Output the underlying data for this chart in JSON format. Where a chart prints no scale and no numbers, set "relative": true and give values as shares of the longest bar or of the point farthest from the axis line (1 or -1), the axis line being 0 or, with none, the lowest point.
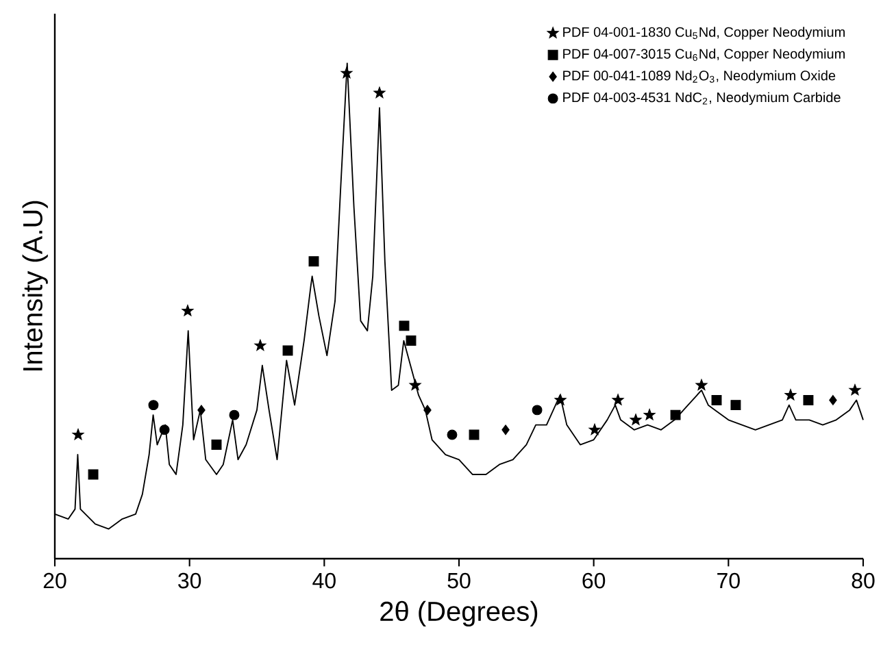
{
  "chart_data": {
    "type": "line",
    "relative": true,
    "xlabel": "2θ (Degrees)",
    "ylabel": "Intensity (A.U)",
    "xlim": [
      20,
      80
    ],
    "xticks": [
      20,
      30,
      40,
      50,
      60,
      70,
      80
    ],
    "grid": false,
    "legend": "top right",
    "tick_labels": "x",
    "series": [
      {
        "color": "#000000",
        "marker": "none",
        "x": [
          20,
          21,
          21.5,
          21.7,
          21.9,
          23,
          24,
          25,
          26,
          26.5,
          27,
          27.3,
          27.6,
          28.2,
          28.5,
          29,
          29.5,
          29.9,
          30.3,
          30.8,
          31.2,
          32,
          32.5,
          33.2,
          33.6,
          34.2,
          35,
          35.4,
          35.9,
          36.5,
          37.2,
          37.8,
          38.5,
          39,
          39.1,
          39.6,
          40.2,
          40.8,
          41.2,
          41.7,
          42.2,
          42.7,
          43.2,
          43.6,
          44.1,
          44.5,
          45,
          45.5,
          45.9,
          46.4,
          47,
          47.5,
          48,
          49,
          50,
          51,
          52,
          53,
          54,
          55,
          55.7,
          56.5,
          57.5,
          58,
          59,
          60,
          61,
          61.6,
          62,
          63,
          64,
          65,
          66,
          67,
          68,
          68.5,
          69,
          70,
          71,
          72,
          73,
          74,
          74.5,
          75,
          76,
          77,
          78,
          79,
          79.5,
          80
        ],
        "values": [
          0.09,
          0.08,
          0.1,
          0.21,
          0.1,
          0.07,
          0.06,
          0.08,
          0.09,
          0.13,
          0.21,
          0.29,
          0.23,
          0.27,
          0.19,
          0.17,
          0.27,
          0.46,
          0.24,
          0.3,
          0.2,
          0.17,
          0.19,
          0.28,
          0.2,
          0.23,
          0.3,
          0.39,
          0.3,
          0.2,
          0.4,
          0.31,
          0.44,
          0.55,
          0.57,
          0.49,
          0.41,
          0.52,
          0.74,
          1,
          0.71,
          0.48,
          0.46,
          0.57,
          0.91,
          0.6,
          0.34,
          0.35,
          0.44,
          0.39,
          0.33,
          0.3,
          0.24,
          0.21,
          0.2,
          0.17,
          0.17,
          0.19,
          0.2,
          0.23,
          0.27,
          0.27,
          0.33,
          0.27,
          0.23,
          0.24,
          0.28,
          0.31,
          0.28,
          0.26,
          0.27,
          0.26,
          0.28,
          0.31,
          0.34,
          0.31,
          0.3,
          0.28,
          0.27,
          0.26,
          0.27,
          0.28,
          0.31,
          0.28,
          0.28,
          0.27,
          0.28,
          0.3,
          0.32,
          0.28
        ]
      },
      {
        "type": "scatter",
        "name": "PDF 04-001-1830 Cu$_{5}$Nd, Copper Neodymium",
        "color": "#000000",
        "marker": "star",
        "x": [
          21.73,
          29.86,
          35.25,
          41.66,
          44.1,
          46.75,
          57.53,
          60.07,
          61.8,
          63.12,
          64.14,
          68.0,
          74.61,
          79.39
        ],
        "values": [
          0.25,
          0.5,
          0.43,
          0.98,
          0.94,
          0.35,
          0.32,
          0.26,
          0.32,
          0.28,
          0.29,
          0.35,
          0.33,
          0.34
        ]
      },
      {
        "type": "scatter",
        "name": "PDF 04-007-3015 Cu$_{6}$Nd, Copper Neodymium",
        "color": "#000000",
        "marker": "square",
        "x": [
          22.85,
          32.0,
          37.29,
          39.22,
          45.93,
          46.44,
          51.12,
          66.07,
          69.12,
          70.54,
          75.93
        ],
        "values": [
          0.17,
          0.23,
          0.42,
          0.6,
          0.47,
          0.44,
          0.25,
          0.29,
          0.32,
          0.31,
          0.32
        ]
      },
      {
        "type": "scatter",
        "name": "PDF 00-041-1089 Nd$_{2}$O$_{3}$, Neodymium Oxide",
        "color": "#000000",
        "marker": "diamond",
        "x": [
          30.88,
          47.66,
          53.46,
          77.76
        ],
        "values": [
          0.3,
          0.3,
          0.26,
          0.32
        ]
      },
      {
        "type": "scatter",
        "name": "PDF 04-003-4531 NdC$_{2}$, Neodymium Carbide",
        "color": "#000000",
        "marker": "circle",
        "x": [
          27.32,
          28.14,
          33.32,
          49.49,
          55.8
        ],
        "values": [
          0.31,
          0.26,
          0.29,
          0.25,
          0.3
        ]
      }
    ]
  }
}
